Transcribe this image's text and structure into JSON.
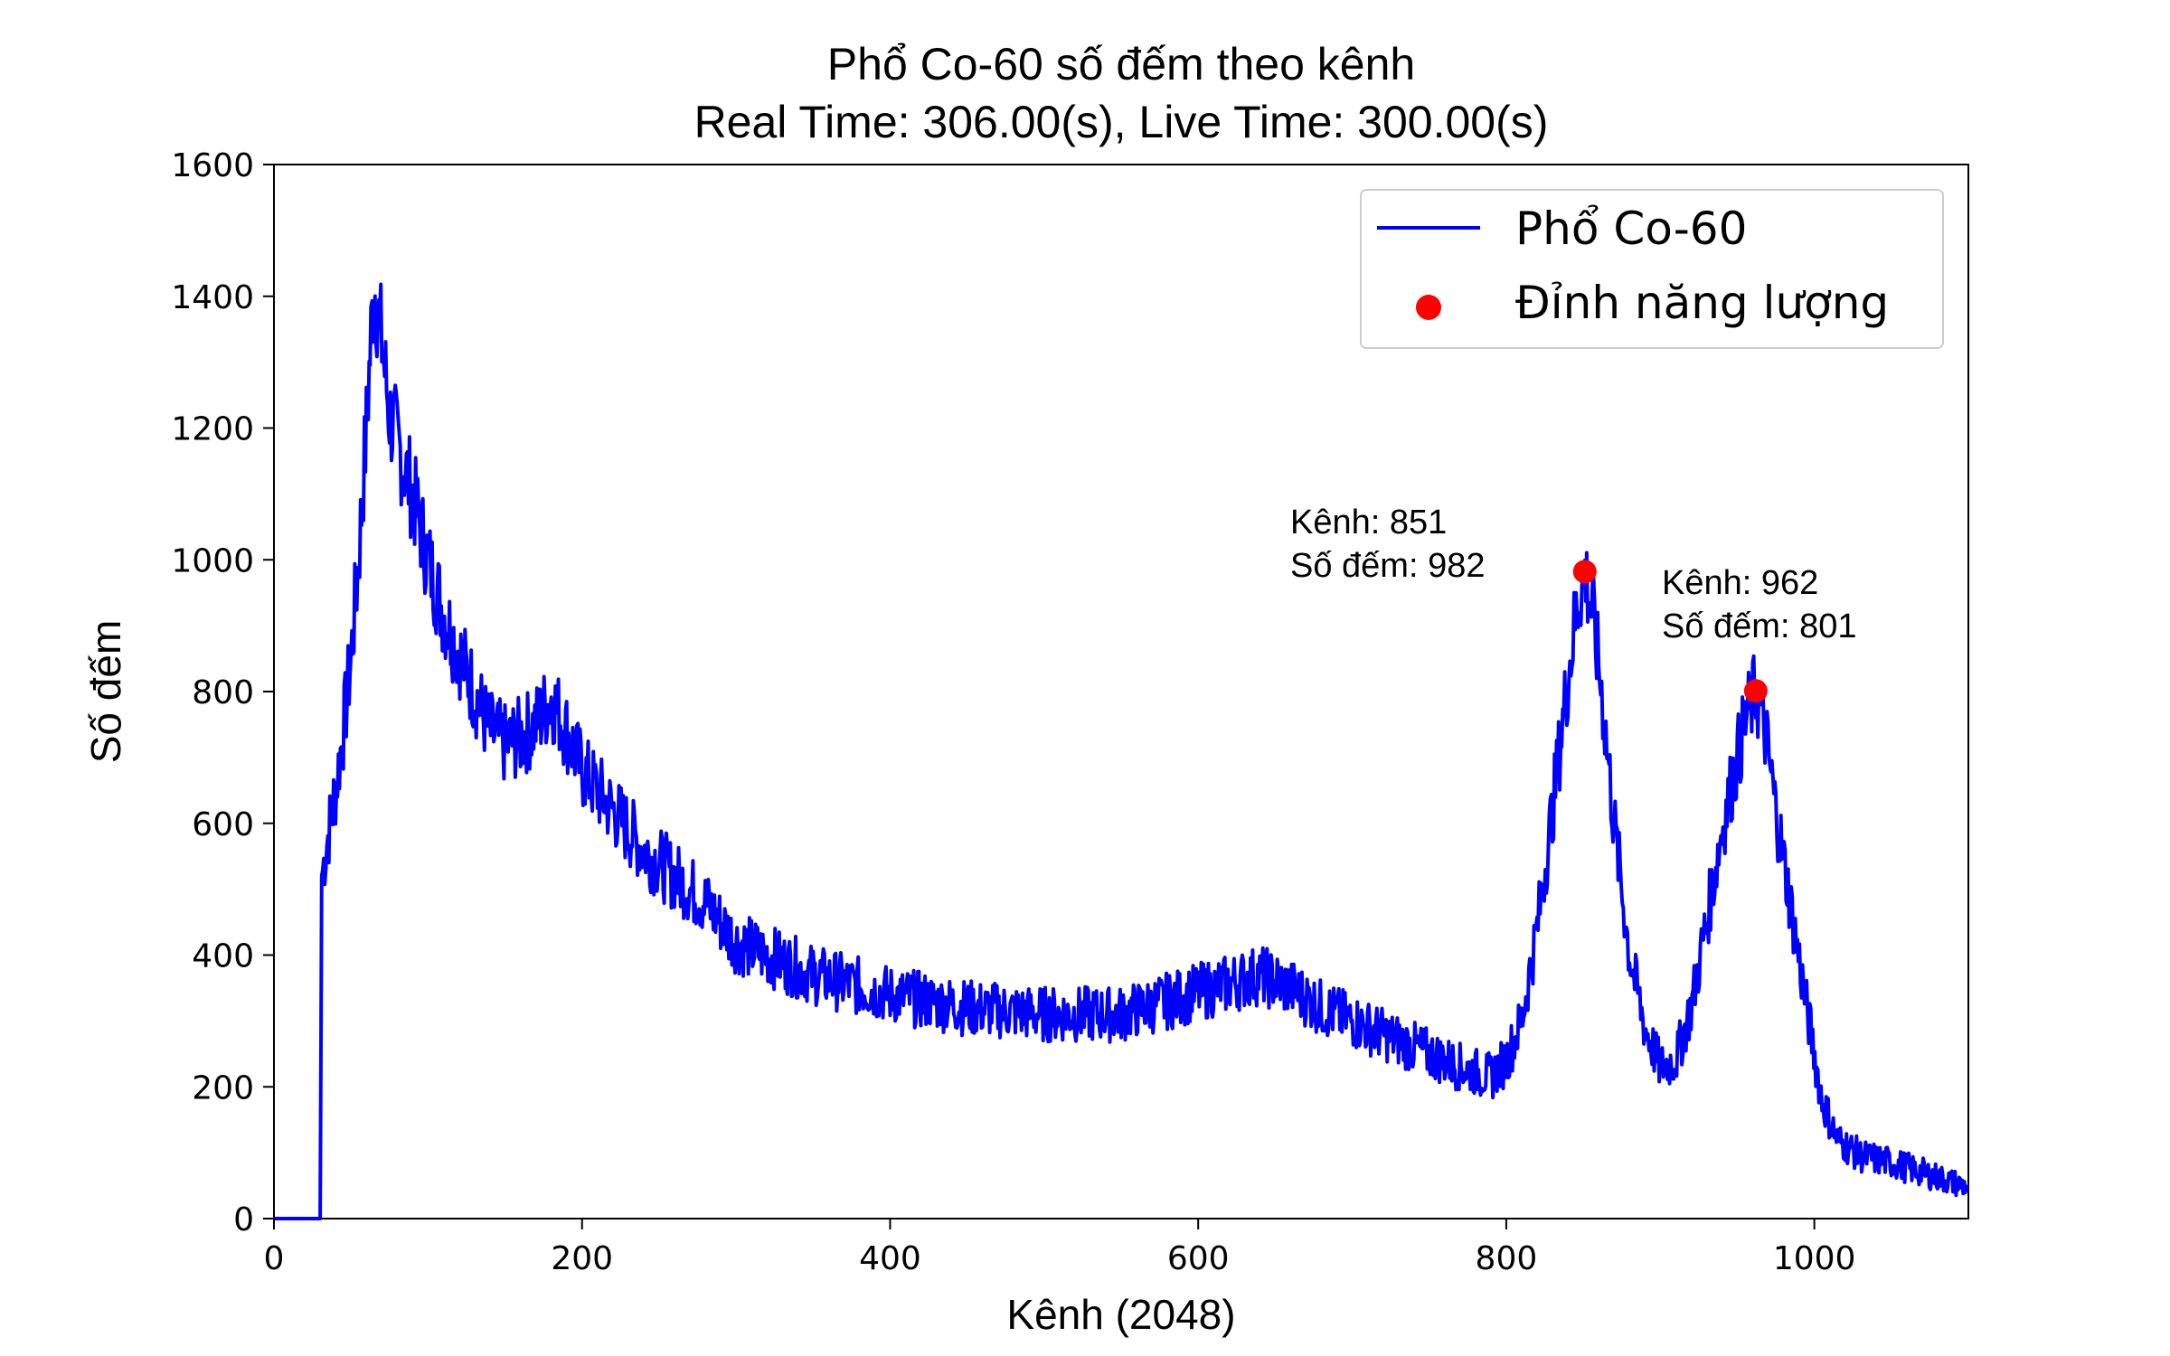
{
  "chart_data": {
    "type": "line",
    "title": "Phổ Co-60 số đếm theo kênh",
    "subtitle": "Real Time: 306.00(s), Live Time: 300.00(s)",
    "xlabel": "Kênh (2048)",
    "ylabel": "Số đếm",
    "xlim": [
      0,
      1100
    ],
    "ylim": [
      0,
      1600
    ],
    "xticks": [
      0,
      200,
      400,
      600,
      800,
      1000
    ],
    "yticks": [
      0,
      200,
      400,
      600,
      800,
      1000,
      1200,
      1400,
      1600
    ],
    "grid": false,
    "legend_position": "top-right",
    "series": [
      {
        "name": "Phổ Co-60",
        "type": "line",
        "color": "#0000ff",
        "points": [
          [
            0,
            0
          ],
          [
            30,
            0
          ],
          [
            31,
            520
          ],
          [
            35,
            580
          ],
          [
            40,
            650
          ],
          [
            45,
            740
          ],
          [
            50,
            850
          ],
          [
            55,
            1000
          ],
          [
            60,
            1200
          ],
          [
            63,
            1340
          ],
          [
            65,
            1420
          ],
          [
            70,
            1330
          ],
          [
            75,
            1220
          ],
          [
            80,
            1180
          ],
          [
            90,
            1100
          ],
          [
            100,
            1000
          ],
          [
            110,
            920
          ],
          [
            120,
            860
          ],
          [
            130,
            800
          ],
          [
            140,
            740
          ],
          [
            150,
            720
          ],
          [
            160,
            730
          ],
          [
            170,
            750
          ],
          [
            180,
            790
          ],
          [
            190,
            740
          ],
          [
            200,
            680
          ],
          [
            220,
            620
          ],
          [
            240,
            560
          ],
          [
            260,
            520
          ],
          [
            280,
            480
          ],
          [
            300,
            420
          ],
          [
            320,
            400
          ],
          [
            350,
            370
          ],
          [
            400,
            340
          ],
          [
            450,
            320
          ],
          [
            500,
            310
          ],
          [
            550,
            310
          ],
          [
            580,
            330
          ],
          [
            610,
            350
          ],
          [
            640,
            370
          ],
          [
            660,
            350
          ],
          [
            680,
            320
          ],
          [
            700,
            300
          ],
          [
            740,
            260
          ],
          [
            770,
            230
          ],
          [
            790,
            215
          ],
          [
            800,
            240
          ],
          [
            810,
            300
          ],
          [
            820,
            440
          ],
          [
            830,
            620
          ],
          [
            840,
            820
          ],
          [
            846,
            930
          ],
          [
            851,
            982
          ],
          [
            856,
            920
          ],
          [
            862,
            800
          ],
          [
            870,
            600
          ],
          [
            880,
            400
          ],
          [
            890,
            290
          ],
          [
            900,
            230
          ],
          [
            910,
            240
          ],
          [
            920,
            320
          ],
          [
            930,
            450
          ],
          [
            940,
            590
          ],
          [
            950,
            700
          ],
          [
            956,
            760
          ],
          [
            962,
            801
          ],
          [
            968,
            740
          ],
          [
            975,
            620
          ],
          [
            985,
            470
          ],
          [
            995,
            320
          ],
          [
            1005,
            180
          ],
          [
            1015,
            120
          ],
          [
            1030,
            95
          ],
          [
            1050,
            85
          ],
          [
            1070,
            70
          ],
          [
            1090,
            55
          ],
          [
            1100,
            48
          ]
        ]
      },
      {
        "name": "Đỉnh năng lượng",
        "type": "scatter",
        "color": "#ff0000",
        "points": [
          [
            851,
            982
          ],
          [
            962,
            801
          ]
        ]
      }
    ],
    "annotations": [
      {
        "line1": "Kênh: 851",
        "line2": "Số đếm: 982"
      },
      {
        "line1": "Kênh: 962",
        "line2": "Số đếm: 801"
      }
    ]
  }
}
